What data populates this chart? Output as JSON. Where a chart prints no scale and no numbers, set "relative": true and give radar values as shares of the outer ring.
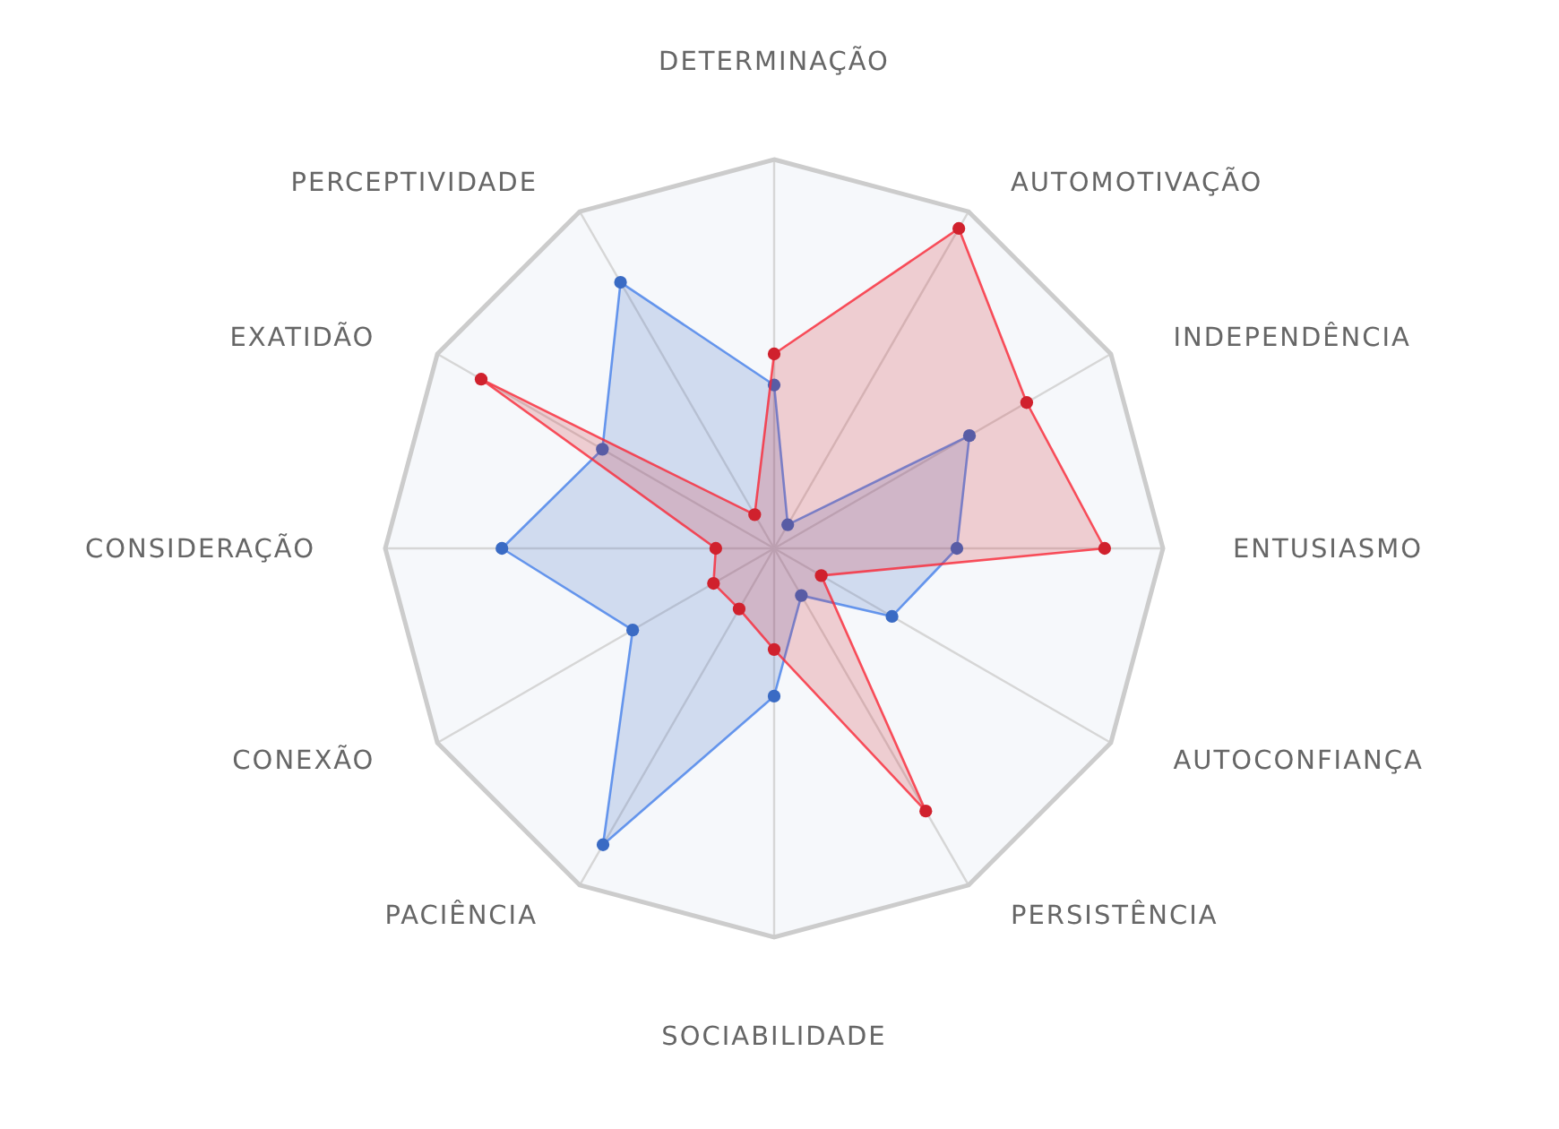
{
  "chart_data": {
    "type": "radar",
    "relative": true,
    "grid": true,
    "marker": "circle",
    "categories": [
      "DETERMINAÇÃO",
      "AUTOMOTIVAÇÃO",
      "INDEPENDÊNCIA",
      "ENTUSIASMO",
      "AUTOCONFIANÇA",
      "PERSISTÊNCIA",
      "SOCIABILIDADE",
      "PACIÊNCIA",
      "CONEXÃO",
      "CONSIDERAÇÃO",
      "EXATIDÃO",
      "PERCEPTIVIDADE"
    ],
    "series": [
      {
        "color": "#3a6bc4",
        "values": [
          0.42,
          0.07,
          0.58,
          0.47,
          0.35,
          0.14,
          0.38,
          0.88,
          0.42,
          0.7,
          0.51,
          0.79
        ]
      },
      {
        "color": "#d0212d",
        "values": [
          0.5,
          0.95,
          0.75,
          0.85,
          0.14,
          0.78,
          0.26,
          0.18,
          0.18,
          0.15,
          0.87,
          0.1
        ]
      }
    ]
  }
}
